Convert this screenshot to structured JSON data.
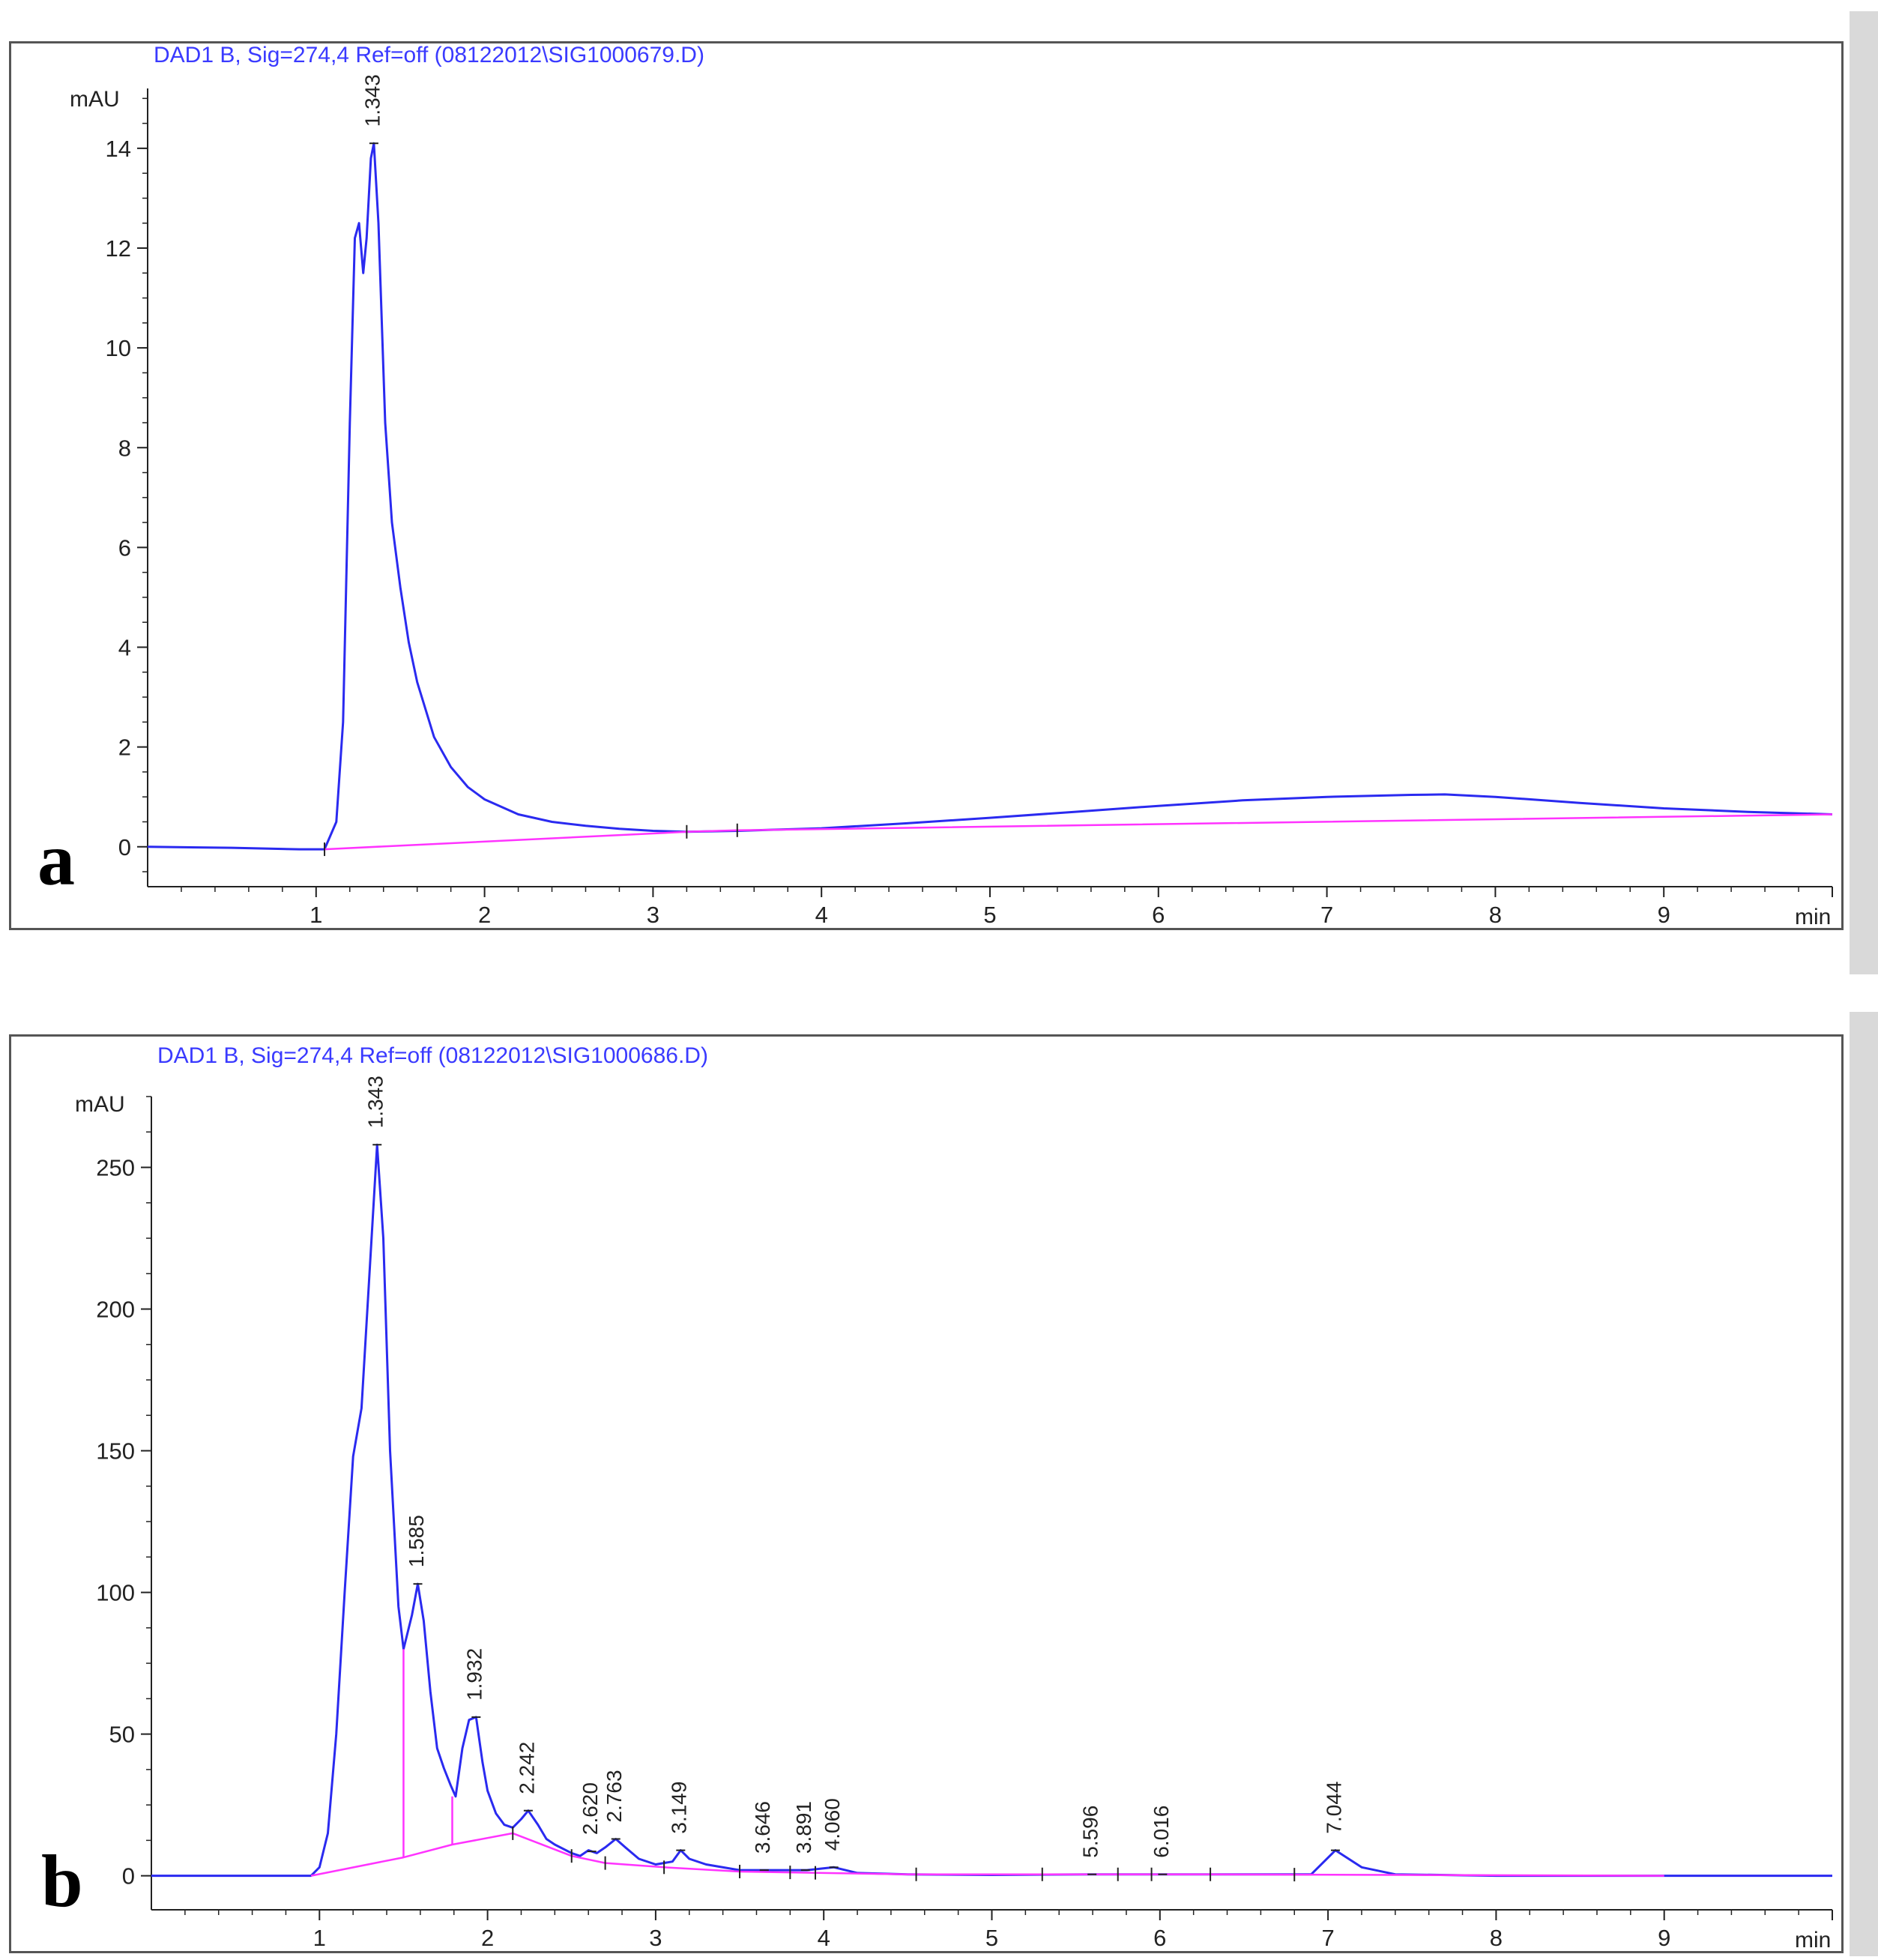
{
  "chart_data": [
    {
      "type": "line",
      "panel_letter": "a",
      "title": "DAD1 B, Sig=274,4 Ref=off (08122012\\SIG1000679.D)",
      "ylabel": "mAU",
      "xlabel": "min",
      "xlim": [
        0,
        10
      ],
      "ylim": [
        -0.8,
        15.2
      ],
      "yticks": [
        0,
        2,
        4,
        6,
        8,
        10,
        12,
        14
      ],
      "xticks": [
        1,
        2,
        3,
        4,
        5,
        6,
        7,
        8,
        9
      ],
      "series": [
        {
          "name": "signal",
          "color": "#2a2af0",
          "x": [
            0.0,
            0.5,
            0.9,
            1.05,
            1.12,
            1.16,
            1.2,
            1.23,
            1.255,
            1.28,
            1.3,
            1.325,
            1.343,
            1.37,
            1.41,
            1.45,
            1.5,
            1.55,
            1.6,
            1.7,
            1.8,
            1.9,
            2.0,
            2.2,
            2.4,
            2.6,
            2.8,
            3.0,
            3.2,
            3.5,
            4.0,
            4.5,
            5.0,
            5.5,
            6.0,
            6.5,
            7.0,
            7.5,
            7.7,
            8.0,
            8.5,
            9.0,
            9.5,
            10.0
          ],
          "y": [
            0.0,
            -0.02,
            -0.05,
            -0.05,
            0.5,
            2.5,
            8.5,
            12.2,
            12.5,
            11.5,
            12.2,
            13.8,
            14.1,
            12.5,
            8.5,
            6.5,
            5.2,
            4.1,
            3.3,
            2.2,
            1.6,
            1.2,
            0.95,
            0.65,
            0.5,
            0.42,
            0.36,
            0.32,
            0.3,
            0.32,
            0.37,
            0.47,
            0.58,
            0.7,
            0.82,
            0.93,
            1.0,
            1.04,
            1.05,
            1.0,
            0.88,
            0.77,
            0.7,
            0.65
          ]
        },
        {
          "name": "baseline",
          "color": "#ff33ff",
          "x": [
            1.05,
            3.2,
            3.5,
            10.0
          ],
          "y": [
            -0.05,
            0.3,
            0.33,
            0.65
          ]
        }
      ],
      "peak_labels": [
        {
          "rt": 1.343,
          "label": "1.343"
        }
      ],
      "segment_marks": [
        1.05,
        3.2,
        3.5
      ]
    },
    {
      "type": "line",
      "panel_letter": "b",
      "title": "DAD1 B, Sig=274,4 Ref=off (08122012\\SIG1000686.D)",
      "ylabel": "mAU",
      "xlabel": "min",
      "xlim": [
        0,
        10
      ],
      "ylim": [
        -12,
        275
      ],
      "yticks": [
        0,
        50,
        100,
        150,
        200,
        250
      ],
      "xticks": [
        1,
        2,
        3,
        4,
        5,
        6,
        7,
        8,
        9
      ],
      "series": [
        {
          "name": "signal",
          "color": "#2a2af0",
          "x": [
            0.0,
            0.5,
            0.95,
            1.0,
            1.05,
            1.1,
            1.15,
            1.2,
            1.25,
            1.3,
            1.343,
            1.38,
            1.42,
            1.47,
            1.5,
            1.55,
            1.585,
            1.62,
            1.66,
            1.7,
            1.74,
            1.78,
            1.81,
            1.85,
            1.89,
            1.932,
            1.97,
            2.0,
            2.05,
            2.1,
            2.15,
            2.2,
            2.242,
            2.3,
            2.35,
            2.4,
            2.5,
            2.55,
            2.6,
            2.65,
            2.7,
            2.763,
            2.82,
            2.9,
            3.0,
            3.1,
            3.149,
            3.2,
            3.3,
            3.5,
            3.646,
            3.8,
            3.9,
            4.06,
            4.2,
            4.5,
            5.0,
            5.596,
            6.016,
            6.5,
            6.9,
            7.044,
            7.2,
            7.4,
            8.0,
            9.0,
            10.0
          ],
          "y": [
            0,
            0,
            0,
            3,
            15,
            50,
            100,
            148,
            165,
            215,
            258,
            225,
            150,
            95,
            80,
            92,
            103,
            90,
            65,
            45,
            38,
            32,
            28,
            45,
            55,
            56,
            40,
            30,
            22,
            18,
            17,
            20,
            23,
            18,
            13,
            11,
            8,
            7,
            9,
            8,
            10,
            13,
            10,
            6,
            4,
            5,
            9,
            6,
            4,
            2,
            2,
            2,
            2,
            3,
            1,
            0.5,
            0.3,
            0.5,
            0.5,
            0.5,
            0.5,
            9,
            3,
            0.5,
            0,
            0,
            0
          ]
        },
        {
          "name": "baseline",
          "color": "#ff33ff",
          "x": [
            0.95,
            1.5,
            1.79,
            2.15,
            2.5,
            2.7,
            3.05,
            3.5,
            4.5,
            6.3,
            9.0
          ],
          "y": [
            0,
            6.5,
            11,
            15,
            7,
            4.5,
            3,
            1.5,
            0.5,
            0.5,
            0
          ]
        }
      ],
      "drop_lines": [
        {
          "x": 1.5,
          "y_top": 80,
          "y_bottom": 6.5
        },
        {
          "x": 1.79,
          "y_top": 28,
          "y_bottom": 11
        }
      ],
      "peak_labels": [
        {
          "rt": 1.343,
          "label": "1.343"
        },
        {
          "rt": 1.585,
          "label": "1.585"
        },
        {
          "rt": 1.932,
          "label": "1.932"
        },
        {
          "rt": 2.242,
          "label": "2.242"
        },
        {
          "rt": 2.62,
          "label": "2.620"
        },
        {
          "rt": 2.763,
          "label": "2.763"
        },
        {
          "rt": 3.149,
          "label": "3.149"
        },
        {
          "rt": 3.646,
          "label": "3.646"
        },
        {
          "rt": 3.891,
          "label": "3.891"
        },
        {
          "rt": 4.06,
          "label": "4.060"
        },
        {
          "rt": 5.596,
          "label": "5.596"
        },
        {
          "rt": 6.016,
          "label": "6.016"
        },
        {
          "rt": 7.044,
          "label": "7.044"
        }
      ],
      "segment_marks": [
        2.15,
        2.5,
        2.7,
        3.05,
        3.5,
        3.8,
        3.95,
        4.55,
        5.3,
        5.75,
        5.95,
        6.3,
        6.8
      ]
    }
  ]
}
